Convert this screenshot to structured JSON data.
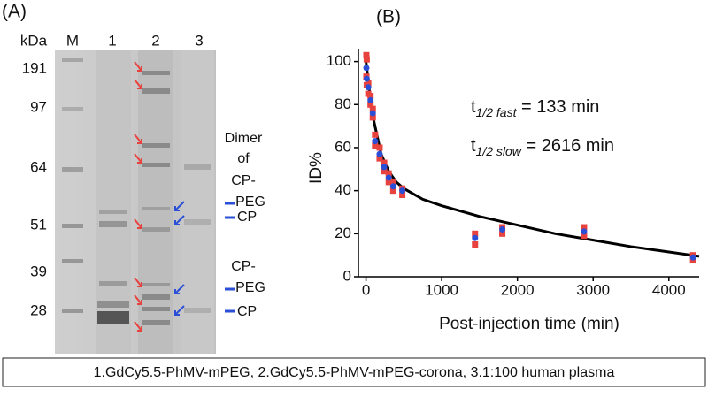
{
  "panel_a": {
    "label": "(A)",
    "unit": "kDa",
    "lanes": [
      "M",
      "1",
      "2",
      "3"
    ],
    "markers": [
      "191",
      "97",
      "64",
      "51",
      "39",
      "28"
    ],
    "annotations": {
      "dimer": [
        "Dimer",
        "of",
        "CP-",
        "PEG"
      ],
      "cp_upper": "CP",
      "cp_peg": [
        "CP-",
        "PEG"
      ],
      "cp_lower": "CP"
    }
  },
  "chart_data": {
    "type": "scatter",
    "panel_label": "(B)",
    "y_label": "ID%",
    "x_label": "Post-injection time (min)",
    "xlim": [
      -100,
      4400
    ],
    "xticks": [
      0,
      1000,
      2000,
      3000,
      4000
    ],
    "ylim": [
      0,
      106
    ],
    "yticks": [
      0,
      20,
      40,
      60,
      80,
      100
    ],
    "annotations": [
      {
        "base": "t",
        "sub": "1/2 fast",
        "rest": " = 133 min"
      },
      {
        "base": "t",
        "sub": "1/2 slow",
        "rest": " = 2616 min"
      }
    ],
    "series": [
      {
        "color": "#e8423f",
        "marker": "square",
        "x": [
          5,
          10,
          30,
          60,
          90,
          120,
          180,
          240,
          300,
          360,
          480,
          1440,
          1800,
          2880,
          4320
        ],
        "values": [
          103,
          101,
          90,
          84,
          78,
          66,
          60,
          53,
          48,
          44,
          41,
          20,
          23,
          23,
          10
        ]
      },
      {
        "color": "#e8423f",
        "marker": "square",
        "x": [
          5,
          10,
          30,
          60,
          90,
          120,
          180,
          240,
          300,
          360,
          480,
          1440,
          1800,
          2880,
          4320
        ],
        "values": [
          93,
          89,
          85,
          80,
          74,
          61,
          55,
          49,
          44,
          40,
          38,
          15,
          20,
          19,
          8
        ]
      },
      {
        "color": "#2a4fd6",
        "marker": "circle",
        "x": [
          5,
          10,
          30,
          60,
          90,
          120,
          180,
          240,
          300,
          360,
          480,
          1440,
          1800,
          2880,
          4320
        ],
        "values": [
          97,
          92,
          88,
          82,
          76,
          63,
          57,
          51,
          46,
          42,
          40,
          18,
          22,
          21,
          9
        ]
      }
    ],
    "fit": {
      "color": "#000000",
      "x": [
        0,
        50,
        100,
        200,
        300,
        400,
        500,
        750,
        1000,
        1500,
        2000,
        2500,
        3000,
        3500,
        4000,
        4400
      ],
      "values": [
        100,
        85,
        73,
        57,
        49,
        44,
        41,
        36,
        33,
        28,
        24,
        20,
        17,
        14,
        11.5,
        9.5
      ]
    }
  },
  "caption": "1.GdCy5.5-PhMV-mPEG, 2.GdCy5.5-PhMV-mPEG-corona, 3.1:100 human plasma"
}
